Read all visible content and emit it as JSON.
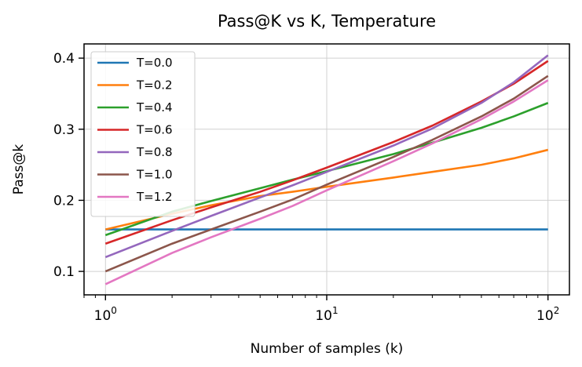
{
  "chart_data": {
    "type": "line",
    "title": "Pass@K vs K, Temperature",
    "xlabel": "Number of samples (k)",
    "ylabel": "Pass@k",
    "xscale": "log",
    "xlim": [
      0.8,
      125
    ],
    "ylim": [
      0.067,
      0.42
    ],
    "x_ticks": [
      {
        "value": 1,
        "base": "10",
        "exp": "0"
      },
      {
        "value": 10,
        "base": "10",
        "exp": "1"
      },
      {
        "value": 100,
        "base": "10",
        "exp": "2"
      }
    ],
    "y_ticks": [
      {
        "value": 0.1,
        "label": "0.1"
      },
      {
        "value": 0.2,
        "label": "0.2"
      },
      {
        "value": 0.3,
        "label": "0.3"
      },
      {
        "value": 0.4,
        "label": "0.4"
      }
    ],
    "grid": true,
    "legend_position": "upper-left",
    "x": [
      1,
      2,
      3,
      5,
      7,
      10,
      20,
      30,
      50,
      70,
      100
    ],
    "series": [
      {
        "name": "T=0.0",
        "color": "#1f77b4",
        "values": [
          0.159,
          0.159,
          0.159,
          0.159,
          0.159,
          0.159,
          0.159,
          0.159,
          0.159,
          0.159,
          0.159
        ]
      },
      {
        "name": "T=0.2",
        "color": "#ff7f0e",
        "values": [
          0.159,
          0.181,
          0.193,
          0.206,
          0.212,
          0.219,
          0.232,
          0.24,
          0.25,
          0.259,
          0.271
        ]
      },
      {
        "name": "T=0.4",
        "color": "#2ca02c",
        "values": [
          0.151,
          0.184,
          0.199,
          0.217,
          0.229,
          0.241,
          0.265,
          0.281,
          0.302,
          0.318,
          0.337
        ]
      },
      {
        "name": "T=0.6",
        "color": "#d62728",
        "values": [
          0.139,
          0.172,
          0.19,
          0.212,
          0.228,
          0.246,
          0.282,
          0.305,
          0.339,
          0.364,
          0.396
        ]
      },
      {
        "name": "T=0.8",
        "color": "#9467bd",
        "values": [
          0.12,
          0.157,
          0.178,
          0.204,
          0.221,
          0.24,
          0.277,
          0.301,
          0.337,
          0.366,
          0.404
        ]
      },
      {
        "name": "T=1.0",
        "color": "#8c564b",
        "values": [
          0.1,
          0.139,
          0.159,
          0.184,
          0.201,
          0.222,
          0.261,
          0.285,
          0.318,
          0.343,
          0.375
        ]
      },
      {
        "name": "T=1.2",
        "color": "#e377c2",
        "values": [
          0.082,
          0.126,
          0.148,
          0.174,
          0.192,
          0.214,
          0.255,
          0.28,
          0.314,
          0.339,
          0.369
        ]
      }
    ]
  }
}
